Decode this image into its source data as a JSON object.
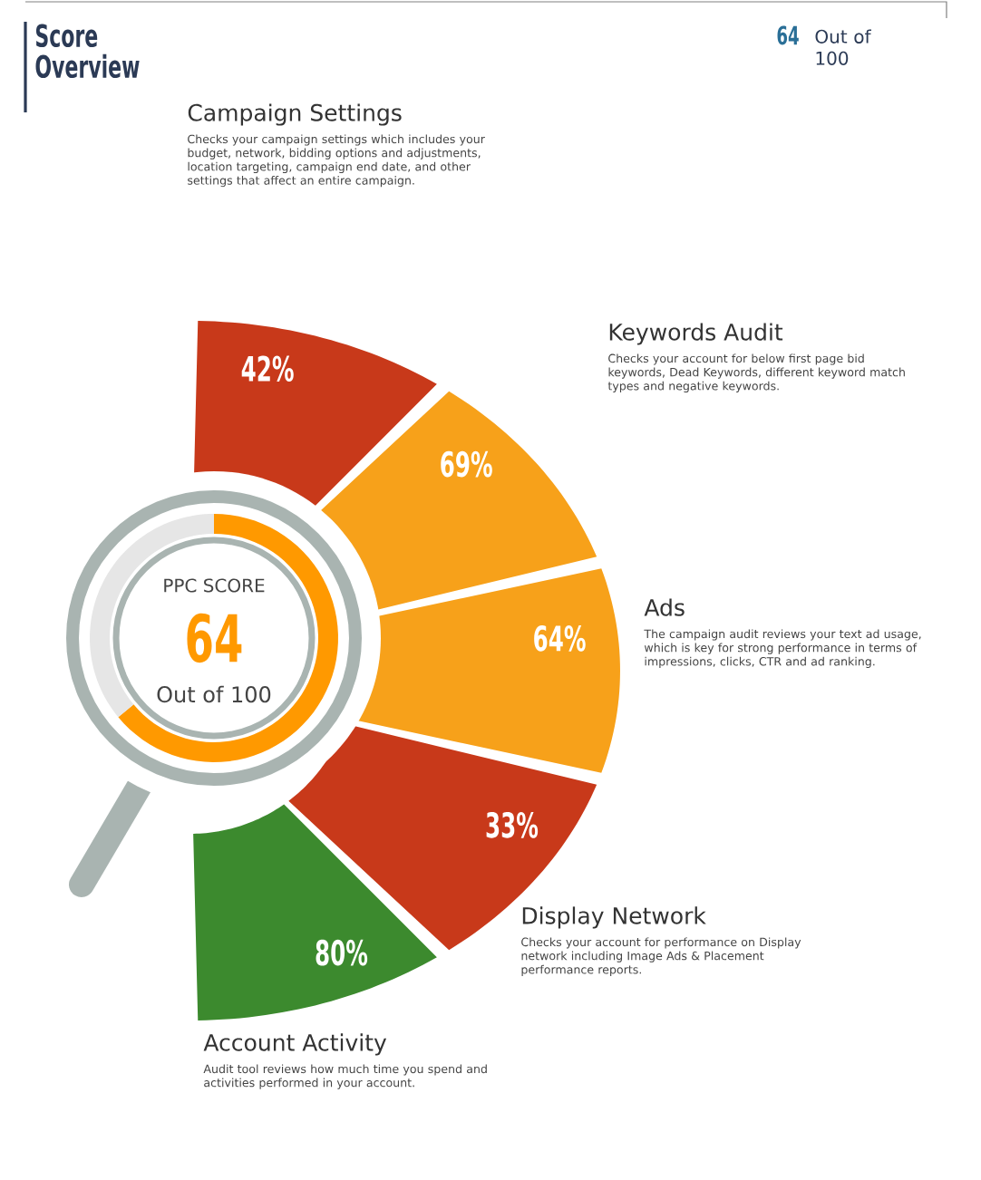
{
  "chart_data": [
    {
      "type": "other",
      "title": "Score Overview",
      "categories": [
        "Campaign Settings",
        "Keywords Audit",
        "Ads",
        "Display Network",
        "Account Activity"
      ],
      "values": [
        42,
        69,
        64,
        33,
        80
      ],
      "value_labels": [
        "42%",
        "69%",
        "64%",
        "33%",
        "80%"
      ],
      "colors": [
        "#c8391a",
        "#f7a11a",
        "#f7a11a",
        "#c8391a",
        "#3c8a2e"
      ],
      "annotations": [
        "Checks your campaign settings which includes your budget, network, bidding options and adjustments, location targeting, campaign end date, and other settings that affect an entire campaign.",
        "Checks your account for below first page bid keywords, Dead Keywords, different keyword match types and negative keywords.",
        "The campaign audit reviews your text ad usage, which is key for strong performance in terms of impressions, clicks, CTR and ad ranking.",
        "Checks your account for performance on Display network including Image Ads & Placement performance reports.",
        "Audit tool reviews how much time you spend and activities performed in your account.",
        "64",
        "Out of 100"
      ]
    },
    {
      "type": "donut",
      "categories": [
        null,
        null
      ],
      "values": [
        64,
        36
      ],
      "colors": [
        "#ff9900",
        "#e6e6e6"
      ],
      "annotations": [
        "PPC SCORE",
        "64",
        "Out of 100"
      ]
    }
  ]
}
